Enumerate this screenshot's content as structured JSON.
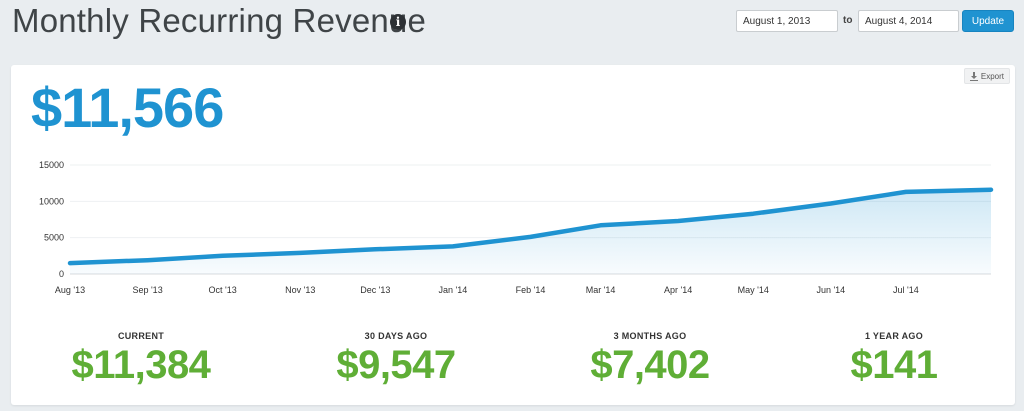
{
  "header": {
    "title": "Monthly Recurring Revenue",
    "info_icon": "info-circle-icon",
    "start_date": "August 1, 2013",
    "to_label": "to",
    "end_date": "August 4, 2014",
    "update_label": "Update"
  },
  "card": {
    "export_label": "Export",
    "export_icon": "download-icon",
    "big_value": "$11,566"
  },
  "stats": [
    {
      "label": "CURRENT",
      "value": "$11,384"
    },
    {
      "label": "30 DAYS AGO",
      "value": "$9,547"
    },
    {
      "label": "3 MONTHS AGO",
      "value": "$7,402"
    },
    {
      "label": "1 YEAR AGO",
      "value": "$141"
    }
  ],
  "colors": {
    "accent_blue": "#1f93d1",
    "green": "#5fae36",
    "background": "#e9edf0"
  },
  "chart_data": {
    "type": "area",
    "title": "",
    "xlabel": "",
    "ylabel": "",
    "ylim": [
      0,
      15000
    ],
    "yticks": [
      0,
      5000,
      10000,
      15000
    ],
    "xticks": [
      "Aug '13",
      "Sep '13",
      "Oct '13",
      "Nov '13",
      "Dec '13",
      "Jan '14",
      "Feb '14",
      "Mar '14",
      "Apr '14",
      "May '14",
      "Jun '14",
      "Jul '14"
    ],
    "grid": true,
    "legend": "none",
    "series": [
      {
        "color": "#1f93d1",
        "x": [
          "2013-08-01",
          "2013-09-01",
          "2013-10-01",
          "2013-11-01",
          "2013-12-01",
          "2014-01-01",
          "2014-02-01",
          "2014-03-01",
          "2014-04-01",
          "2014-05-01",
          "2014-06-01",
          "2014-07-01",
          "2014-08-04"
        ],
        "values": [
          1500,
          1900,
          2500,
          2900,
          3400,
          3800,
          5100,
          6700,
          7300,
          8300,
          9700,
          11300,
          11600
        ]
      }
    ]
  }
}
